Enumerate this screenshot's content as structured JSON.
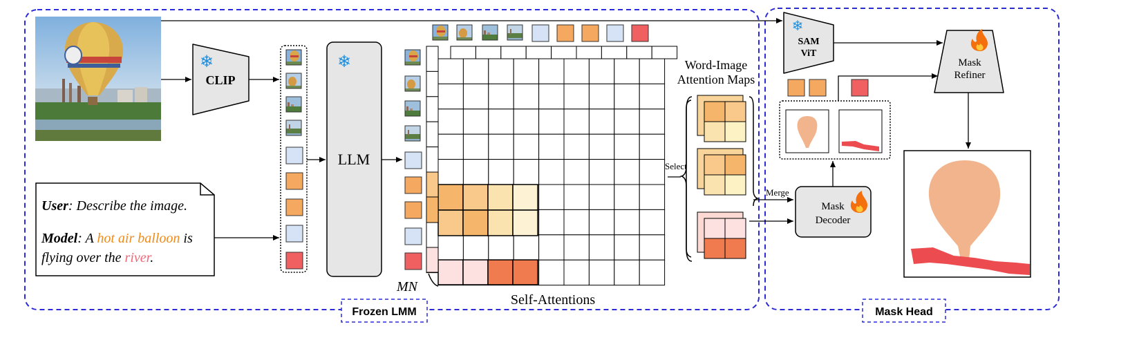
{
  "groups": {
    "frozen": "Frozen LMM",
    "head": "Mask Head"
  },
  "modules": {
    "clip": "CLIP",
    "llm": "LLM",
    "sam_line1": "SAM",
    "sam_line2": "ViT",
    "refiner_line1": "Mask",
    "refiner_line2": "Refiner",
    "decoder_line1": "Mask",
    "decoder_line2": "Decoder"
  },
  "labels": {
    "self_attn": "Self-Attentions",
    "mn": "MN",
    "word_image_1": "Word-Image",
    "word_image_2": "Attention Maps",
    "select": "Select",
    "merge": "Merge"
  },
  "prompt": {
    "user_label": "User",
    "user_text": ": Describe the image.",
    "model_label": "Model",
    "model_pre": ": A ",
    "phrase1": "hot air balloon",
    "model_mid1": " is",
    "model_mid2": "flying over the ",
    "phrase2": "river",
    "model_end": "."
  },
  "colors": {
    "frame_blue": "#2a2ad8",
    "orange": "#f5a860",
    "blue_token": "#d6e2f5",
    "red_token": "#f06060",
    "phrase1_color": "#f08a1a",
    "phrase2_color": "#f06878",
    "mask_orange": "#f2b48c",
    "mask_red": "#ec4b50",
    "module_gray": "#e6e6e6"
  }
}
